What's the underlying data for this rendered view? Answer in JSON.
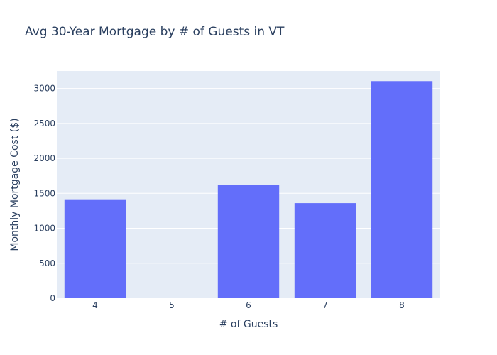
{
  "chart_data": {
    "type": "bar",
    "title": "Avg 30-Year Mortgage by # of Guests in VT",
    "xlabel": "# of Guests",
    "ylabel": "Monthly Mortgage Cost ($)",
    "categories": [
      "4",
      "5",
      "6",
      "7",
      "8"
    ],
    "values": [
      1415,
      0,
      1625,
      1360,
      3105
    ],
    "ylim": [
      0,
      3250
    ],
    "yticks": [
      0,
      500,
      1000,
      1500,
      2000,
      2500,
      3000
    ],
    "grid": true,
    "legend": "none",
    "colors": {
      "bar": "#636efa",
      "plot_bg": "#e5ecf6",
      "grid": "#ffffff",
      "text": "#2a3f5f"
    }
  }
}
